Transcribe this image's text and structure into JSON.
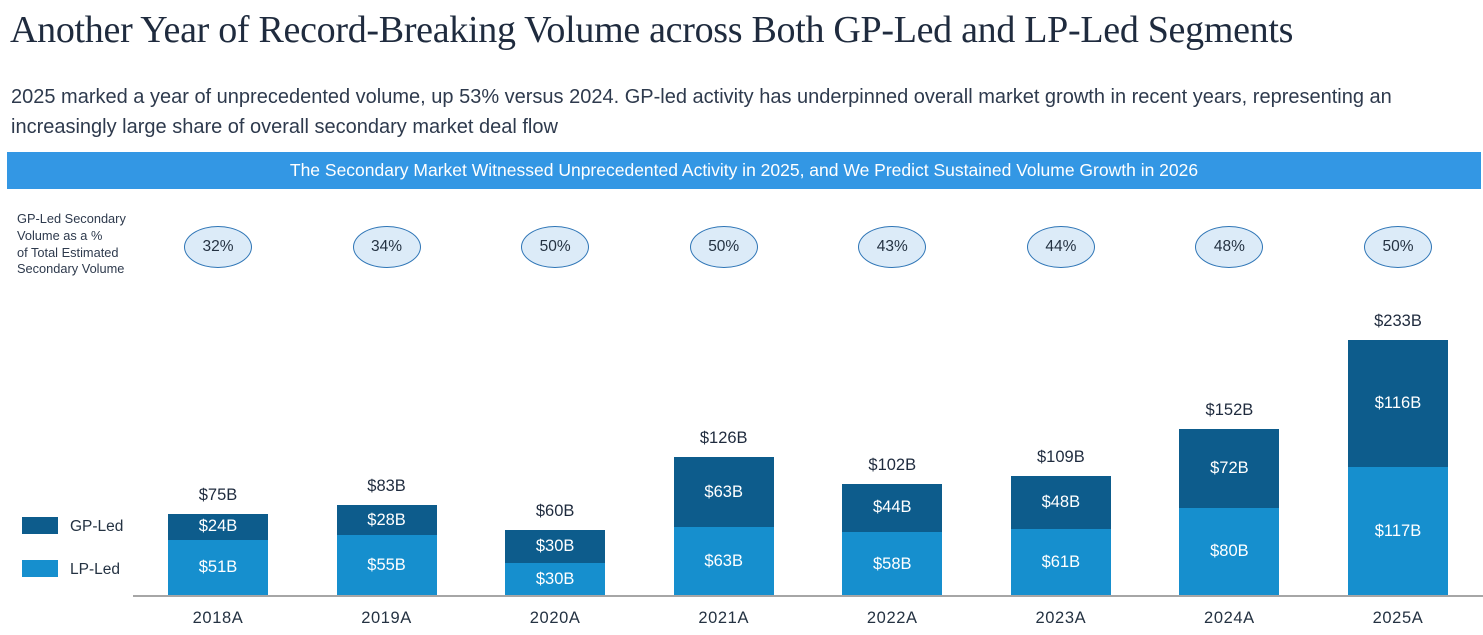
{
  "header": {
    "title": "Another Year of Record-Breaking Volume across Both GP-Led and LP-Led Segments",
    "subtitle": "2025 marked a year of unprecedented volume, up 53% versus 2024. GP-led activity has underpinned overall market growth in recent years, representing an increasingly large share of overall secondary market deal flow"
  },
  "banner": {
    "text": "The Secondary Market Witnessed Unprecedented Activity in 2025, and We Predict Sustained Volume Growth in 2026",
    "background": "#3397E4"
  },
  "side_label": {
    "lines": [
      "GP-Led Secondary",
      "Volume as a %",
      "of Total Estimated",
      "Secondary Volume"
    ]
  },
  "chart_data": {
    "type": "bar",
    "stacked": true,
    "categories": [
      "2018A",
      "2019A",
      "2020A",
      "2021A",
      "2022A",
      "2023A",
      "2024A",
      "2025A"
    ],
    "series": [
      {
        "name": "GP-Led",
        "color": "#0D5C8C",
        "values": [
          24,
          28,
          30,
          63,
          44,
          48,
          72,
          116
        ],
        "labels": [
          "$24B",
          "$28B",
          "$30B",
          "$63B",
          "$44B",
          "$48B",
          "$72B",
          "$116B"
        ]
      },
      {
        "name": "LP-Led",
        "color": "#168FCE",
        "values": [
          51,
          55,
          30,
          63,
          58,
          61,
          80,
          117
        ],
        "labels": [
          "$51B",
          "$55B",
          "$30B",
          "$63B",
          "$58B",
          "$61B",
          "$80B",
          "$117B"
        ]
      }
    ],
    "totals": [
      75,
      83,
      60,
      126,
      102,
      109,
      152,
      233
    ],
    "total_labels": [
      "$75B",
      "$83B",
      "$60B",
      "$126B",
      "$102B",
      "$109B",
      "$152B",
      "$233B"
    ],
    "gp_share_pct": [
      "32%",
      "34%",
      "50%",
      "50%",
      "43%",
      "44%",
      "48%",
      "50%"
    ],
    "unit": "$B",
    "grid": false,
    "legend_position": "bottom-left",
    "segment_order_top_to_bottom": [
      "GP-Led",
      "LP-Led"
    ]
  },
  "legend": {
    "items": [
      {
        "label": "GP-Led",
        "color": "#0D5C8C"
      },
      {
        "label": "LP-Led",
        "color": "#168FCE"
      }
    ]
  },
  "colors": {
    "banner_background": "#3397E4",
    "oval_fill": "#DCEBF8",
    "oval_border": "#2E75B6",
    "axis_line": "#A6A6A6",
    "title_text": "#1F2B3E",
    "body_text": "#2E3A4D",
    "bar_value_text": "#FFFFFF"
  }
}
